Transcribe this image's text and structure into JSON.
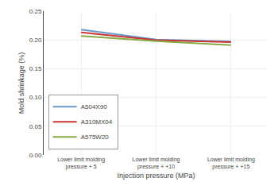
{
  "chart_data": {
    "type": "line",
    "categories": [
      "Lower limit molding\npressure + 5",
      "Lower limit molding\npressure + +10",
      "Lower limit molding\npressure + +15"
    ],
    "series": [
      {
        "name": "A504X90",
        "color": "#6699cc",
        "values": [
          0.218,
          0.2005,
          0.197
        ]
      },
      {
        "name": "A310MX04",
        "color": "#cc3333",
        "values": [
          0.213,
          0.1995,
          0.196
        ]
      },
      {
        "name": "A575W20",
        "color": "#88aa44",
        "values": [
          0.207,
          0.198,
          0.191
        ]
      }
    ],
    "xlabel": "Injection pressure (MPa)",
    "ylabel": "Mold shrinkage (%)",
    "ylim": [
      0.0,
      0.25
    ],
    "yticks": [
      {
        "value": 0.0,
        "label": "0.00"
      },
      0.05,
      {
        "value": 0.1,
        "label": "0.10"
      },
      0.15,
      {
        "value": 0.2,
        "label": "0.20"
      },
      0.25
    ],
    "grid": true,
    "legend": "lower left"
  }
}
